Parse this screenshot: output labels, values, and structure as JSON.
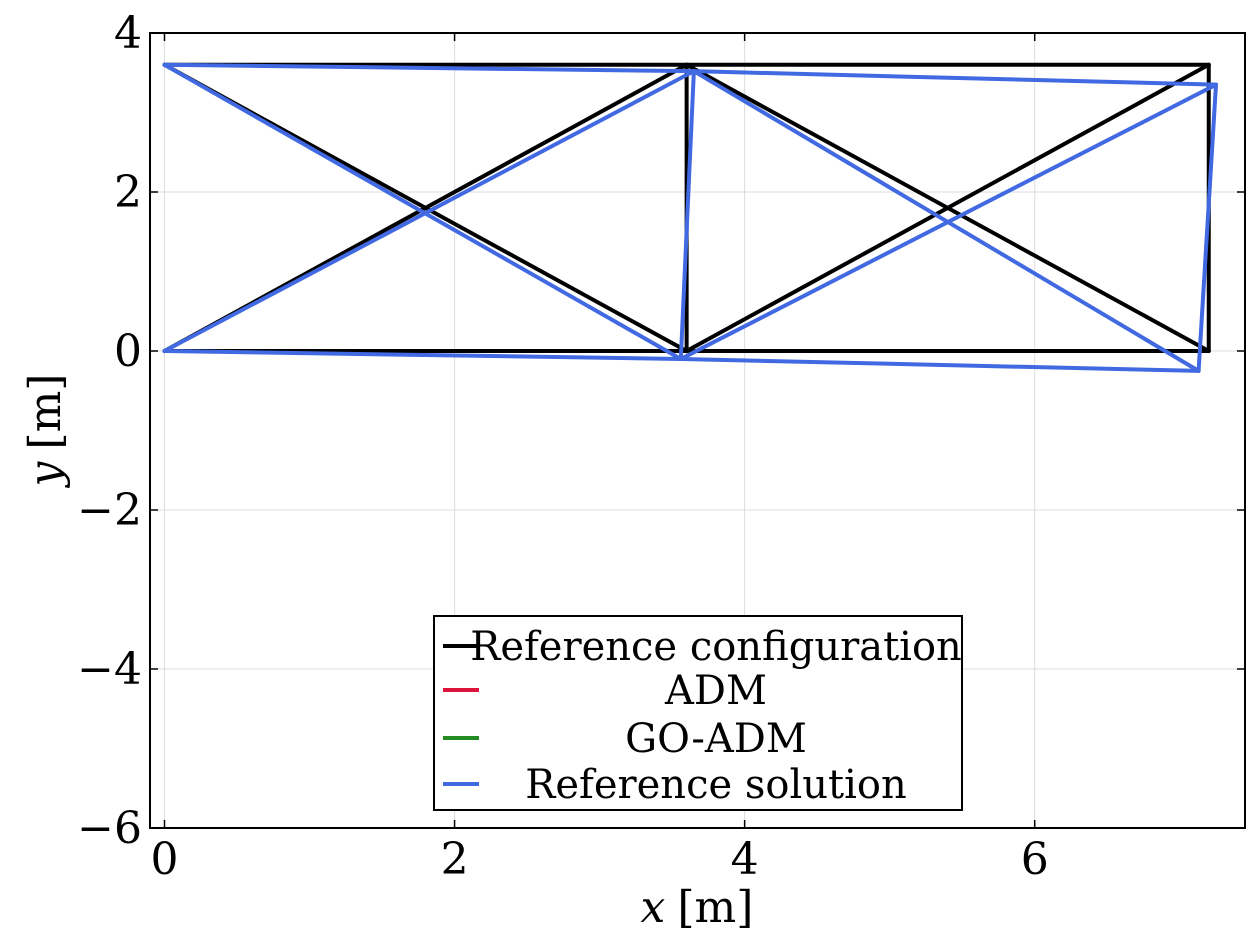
{
  "chart_data": {
    "type": "line",
    "title": "",
    "xlabel_var": "x",
    "xlabel_unit": "[m]",
    "ylabel_var": "y",
    "ylabel_unit": "[m]",
    "xlim": [
      -0.1,
      7.45
    ],
    "ylim": [
      -6,
      4
    ],
    "xticks": [
      0,
      2,
      4,
      6
    ],
    "yticks": [
      4,
      2,
      0,
      -2,
      -4,
      -6
    ],
    "xtick_labels": [
      "0",
      "2",
      "4",
      "6"
    ],
    "ytick_labels": [
      "4",
      "2",
      "0",
      "−2",
      "−4",
      "−6"
    ],
    "grid": true,
    "legend_position": "lower-center",
    "series": [
      {
        "name": "Reference configuration",
        "color": "#000000",
        "nodes": [
          [
            0,
            0
          ],
          [
            0,
            3.6
          ],
          [
            3.6,
            0
          ],
          [
            3.6,
            3.6
          ],
          [
            7.2,
            0
          ],
          [
            7.2,
            3.6
          ]
        ]
      },
      {
        "name": "ADM",
        "color": "#dc143c",
        "nodes": []
      },
      {
        "name": "GO-ADM",
        "color": "#228b22",
        "nodes": []
      },
      {
        "name": "Reference solution",
        "color": "#4169e1",
        "nodes": [
          [
            0,
            0
          ],
          [
            0,
            3.6
          ],
          [
            3.56,
            -0.1
          ],
          [
            3.65,
            3.52
          ],
          [
            7.13,
            -0.25
          ],
          [
            7.25,
            3.35
          ]
        ]
      }
    ],
    "members": [
      [
        0,
        2
      ],
      [
        2,
        4
      ],
      [
        1,
        3
      ],
      [
        3,
        5
      ],
      [
        2,
        3
      ],
      [
        4,
        5
      ],
      [
        0,
        3
      ],
      [
        1,
        2
      ],
      [
        2,
        5
      ],
      [
        3,
        4
      ]
    ]
  }
}
